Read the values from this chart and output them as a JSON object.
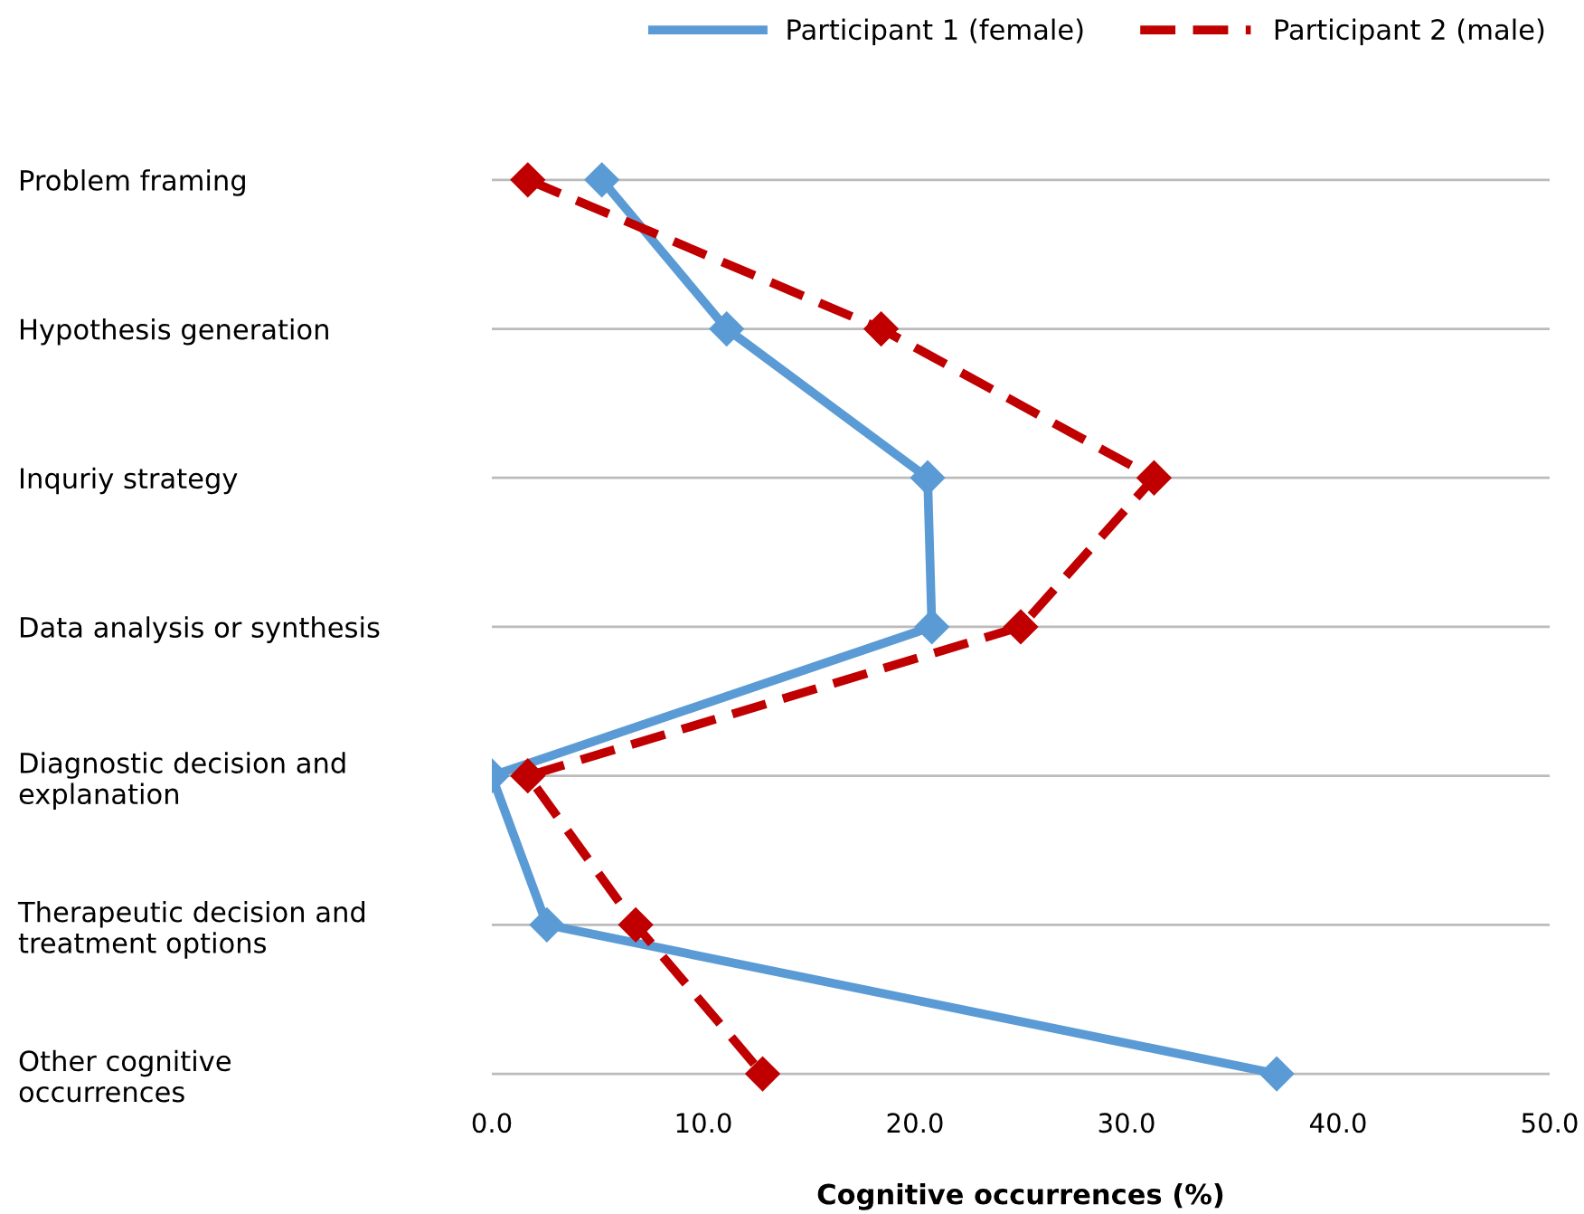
{
  "chart_data": {
    "type": "line",
    "orientation": "horizontal",
    "xlabel": "Cognitive occurrences (%)",
    "categories": [
      "Problem framing",
      "Hypothesis generation",
      "Inquriy strategy",
      "Data analysis or synthesis",
      "Diagnostic decision and\nexplanation",
      "Therapeutic decision and\ntreatment options",
      "Other cognitive\noccurrences"
    ],
    "series": [
      {
        "name": "Participant 1 (female)",
        "color": "#5b9bd5",
        "line_style": "solid",
        "values": [
          5.2,
          11.1,
          20.6,
          20.8,
          0.0,
          2.6,
          37.1
        ]
      },
      {
        "name": "Participant 2 (male)",
        "color": "#c00000",
        "line_style": "dashed",
        "values": [
          1.7,
          18.4,
          31.3,
          25.0,
          1.7,
          6.8,
          12.8
        ]
      }
    ],
    "marker": "diamond",
    "xlim": [
      0,
      50
    ],
    "xticks": [
      {
        "value": 0,
        "label": "0.0"
      },
      {
        "value": 10,
        "label": "10.0"
      },
      {
        "value": 20,
        "label": "20.0"
      },
      {
        "value": 30,
        "label": "30.0"
      },
      {
        "value": 40,
        "label": "40.0"
      },
      {
        "value": 50,
        "label": "50.0"
      }
    ],
    "grid": "y",
    "legend": "top right"
  }
}
